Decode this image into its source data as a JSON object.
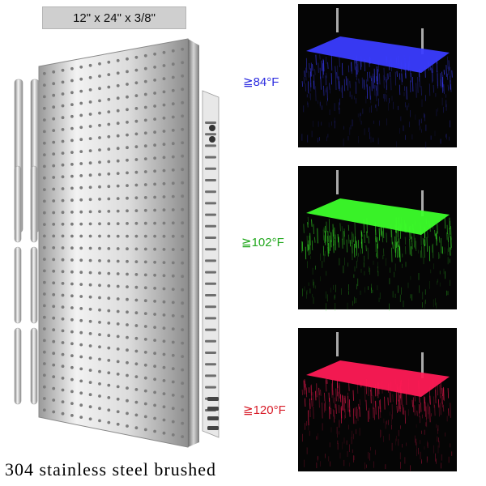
{
  "dimension_label": "12\" x 24\" x 3/8\"",
  "temperatures": [
    {
      "text": "≧84°F",
      "color": "#2d2de0",
      "light": "#3a3cff"
    },
    {
      "text": "≧102°F",
      "color": "#22a81e",
      "light": "#3cff2a"
    },
    {
      "text": "≧120°F",
      "color": "#d81e2a",
      "light": "#ff1a55"
    }
  ],
  "material_label": "304 stainless steel brushed"
}
